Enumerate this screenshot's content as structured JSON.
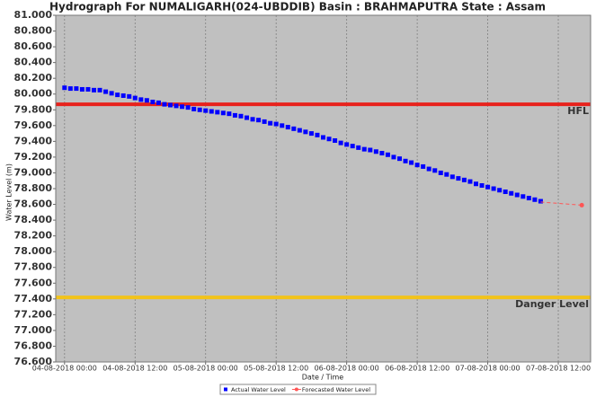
{
  "chart_data": {
    "type": "line",
    "title": "Hydrograph For NUMALIGARH(024-UBDDIB) Basin : BRAHMAPUTRA State : Assam",
    "x_label": "Date / Time",
    "y_label": "Water Level (m)",
    "xlim": [
      "03-08-2018 22:30",
      "07-08-2018 17:30"
    ],
    "xticks": [
      "04-08-2018 00:00",
      "04-08-2018 12:00",
      "05-08-2018 00:00",
      "05-08-2018 12:00",
      "06-08-2018 00:00",
      "06-08-2018 12:00",
      "07-08-2018 00:00",
      "07-08-2018 12:00"
    ],
    "ylim": [
      76.6,
      81.0
    ],
    "yticks": [
      {
        "value": 76.6,
        "label": "76.600"
      },
      {
        "value": 76.8,
        "label": "76.800"
      },
      {
        "value": 77.0,
        "label": "77.000"
      },
      {
        "value": 77.2,
        "label": "77.200"
      },
      {
        "value": 77.4,
        "label": "77.400"
      },
      {
        "value": 77.6,
        "label": "77.600"
      },
      {
        "value": 77.8,
        "label": "77.800"
      },
      {
        "value": 78.0,
        "label": "78.000"
      },
      {
        "value": 78.2,
        "label": "78.200"
      },
      {
        "value": 78.4,
        "label": "78.400"
      },
      {
        "value": 78.6,
        "label": "78.600"
      },
      {
        "value": 78.8,
        "label": "78.800"
      },
      {
        "value": 79.0,
        "label": "79.000"
      },
      {
        "value": 79.2,
        "label": "79.200"
      },
      {
        "value": 79.4,
        "label": "79.400"
      },
      {
        "value": 79.6,
        "label": "79.600"
      },
      {
        "value": 79.8,
        "label": "79.800"
      },
      {
        "value": 80.0,
        "label": "80.000"
      },
      {
        "value": 80.2,
        "label": "80.200"
      },
      {
        "value": 80.4,
        "label": "80.400"
      },
      {
        "value": 80.6,
        "label": "80.600"
      },
      {
        "value": 80.8,
        "label": "80.800"
      },
      {
        "value": 81.0,
        "label": "81.000"
      }
    ],
    "grid": "x",
    "background": "#c0c0c0",
    "reference_lines": [
      {
        "label": "HFL",
        "value": 79.87,
        "color": "#e8221c"
      },
      {
        "label": "Danger Level",
        "value": 77.42,
        "color": "#f2c31a"
      }
    ],
    "series": [
      {
        "name": "Actual Water Level",
        "color": "#0000ff",
        "marker": "square",
        "line": false,
        "x": [
          "04-08-2018 00:00",
          "04-08-2018 01:00",
          "04-08-2018 02:00",
          "04-08-2018 03:00",
          "04-08-2018 04:00",
          "04-08-2018 05:00",
          "04-08-2018 06:00",
          "04-08-2018 07:00",
          "04-08-2018 08:00",
          "04-08-2018 09:00",
          "04-08-2018 10:00",
          "04-08-2018 11:00",
          "04-08-2018 12:00",
          "04-08-2018 13:00",
          "04-08-2018 14:00",
          "04-08-2018 15:00",
          "04-08-2018 16:00",
          "04-08-2018 17:00",
          "04-08-2018 18:00",
          "04-08-2018 19:00",
          "04-08-2018 20:00",
          "04-08-2018 21:00",
          "04-08-2018 22:00",
          "04-08-2018 23:00",
          "05-08-2018 00:00",
          "05-08-2018 01:00",
          "05-08-2018 02:00",
          "05-08-2018 03:00",
          "05-08-2018 04:00",
          "05-08-2018 05:00",
          "05-08-2018 06:00",
          "05-08-2018 07:00",
          "05-08-2018 08:00",
          "05-08-2018 09:00",
          "05-08-2018 10:00",
          "05-08-2018 11:00",
          "05-08-2018 12:00",
          "05-08-2018 13:00",
          "05-08-2018 14:00",
          "05-08-2018 15:00",
          "05-08-2018 16:00",
          "05-08-2018 17:00",
          "05-08-2018 18:00",
          "05-08-2018 19:00",
          "05-08-2018 20:00",
          "05-08-2018 21:00",
          "05-08-2018 22:00",
          "05-08-2018 23:00",
          "06-08-2018 00:00",
          "06-08-2018 01:00",
          "06-08-2018 02:00",
          "06-08-2018 03:00",
          "06-08-2018 04:00",
          "06-08-2018 05:00",
          "06-08-2018 06:00",
          "06-08-2018 07:00",
          "06-08-2018 08:00",
          "06-08-2018 09:00",
          "06-08-2018 10:00",
          "06-08-2018 11:00",
          "06-08-2018 12:00",
          "06-08-2018 13:00",
          "06-08-2018 14:00",
          "06-08-2018 15:00",
          "06-08-2018 16:00",
          "06-08-2018 17:00",
          "06-08-2018 18:00",
          "06-08-2018 19:00",
          "06-08-2018 20:00",
          "06-08-2018 21:00",
          "06-08-2018 22:00",
          "06-08-2018 23:00",
          "07-08-2018 00:00",
          "07-08-2018 01:00",
          "07-08-2018 02:00",
          "07-08-2018 03:00",
          "07-08-2018 04:00",
          "07-08-2018 05:00",
          "07-08-2018 06:00",
          "07-08-2018 07:00",
          "07-08-2018 08:00",
          "07-08-2018 09:00"
        ],
        "values": [
          80.08,
          80.07,
          80.07,
          80.06,
          80.06,
          80.05,
          80.05,
          80.03,
          80.01,
          79.99,
          79.98,
          79.97,
          79.95,
          79.93,
          79.92,
          79.9,
          79.89,
          79.87,
          79.86,
          79.85,
          79.84,
          79.83,
          79.81,
          79.8,
          79.79,
          79.78,
          79.77,
          79.76,
          79.75,
          79.73,
          79.72,
          79.7,
          79.68,
          79.67,
          79.65,
          79.63,
          79.62,
          79.6,
          79.58,
          79.56,
          79.54,
          79.52,
          79.5,
          79.48,
          79.45,
          79.43,
          79.41,
          79.38,
          79.36,
          79.34,
          79.32,
          79.3,
          79.29,
          79.27,
          79.25,
          79.23,
          79.2,
          79.18,
          79.15,
          79.13,
          79.1,
          79.08,
          79.05,
          79.03,
          79.0,
          78.98,
          78.95,
          78.93,
          78.91,
          78.89,
          78.86,
          78.84,
          78.82,
          78.8,
          78.78,
          78.76,
          78.74,
          78.72,
          78.7,
          78.68,
          78.66,
          78.64
        ]
      },
      {
        "name": "Forecasted Water Level",
        "color": "#ff5555",
        "marker": "circle",
        "line": true,
        "x": [
          "07-08-2018 09:00",
          "07-08-2018 16:00"
        ],
        "values": [
          78.63,
          78.59
        ]
      }
    ]
  }
}
